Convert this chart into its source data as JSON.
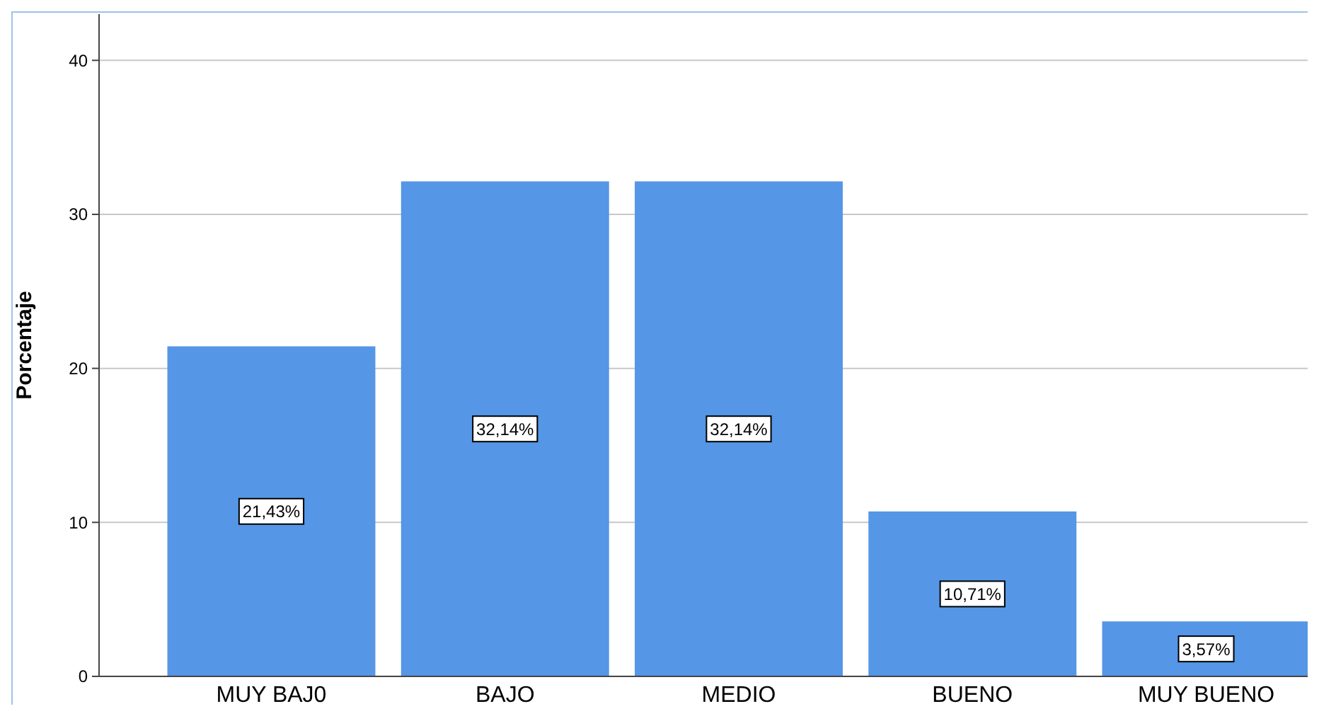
{
  "chart_data": {
    "type": "bar",
    "ylabel": "Porcentaje",
    "categories": [
      "MUY BAJ0",
      "BAJO",
      "MEDIO",
      "BUENO",
      "MUY BUENO"
    ],
    "values": [
      21.43,
      32.14,
      32.14,
      10.71,
      3.57
    ],
    "value_labels": [
      "21,43%",
      "32,14%",
      "32,14%",
      "10,71%",
      "3,57%"
    ],
    "color": "#5596e6",
    "ylim": [
      0,
      43
    ],
    "yticks": [
      0,
      10,
      20,
      30,
      40
    ],
    "grid": "y"
  }
}
